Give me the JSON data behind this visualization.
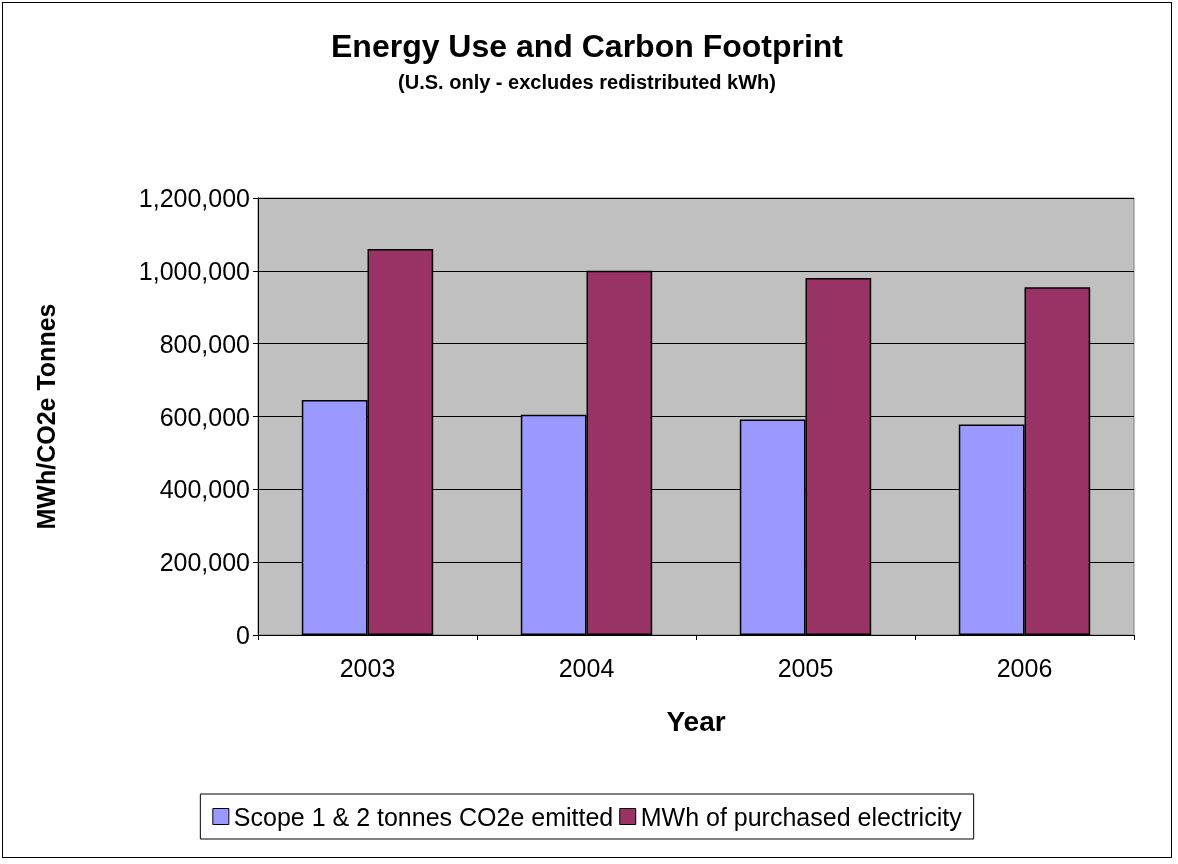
{
  "chart_data": {
    "type": "bar",
    "title": "Energy Use and Carbon Footprint",
    "subtitle": "(U.S. only - excludes redistributed kWh)",
    "xlabel": "Year",
    "ylabel": "MWh/CO2e Tonnes",
    "categories": [
      "2003",
      "2004",
      "2005",
      "2006"
    ],
    "series": [
      {
        "name": "Scope 1 & 2 tonnes CO2e emitted",
        "color": "#9999ff",
        "values": [
          645000,
          605000,
          592000,
          578000
        ]
      },
      {
        "name": "MWh of purchased electricity",
        "color": "#993366",
        "values": [
          1060000,
          1000000,
          980000,
          955000
        ]
      }
    ],
    "ylim": [
      0,
      1200000
    ],
    "yticks": [
      0,
      {
        "value": 200000,
        "label": "200,000"
      },
      {
        "value": 400000,
        "label": "400,000"
      },
      {
        "value": 600000,
        "label": "600,000"
      },
      {
        "value": 800000,
        "label": "800,000"
      },
      {
        "value": 1000000,
        "label": "1,000,000"
      },
      {
        "value": 1200000,
        "label": "1,200,000"
      }
    ],
    "grid": "y",
    "legend": "bottom"
  }
}
